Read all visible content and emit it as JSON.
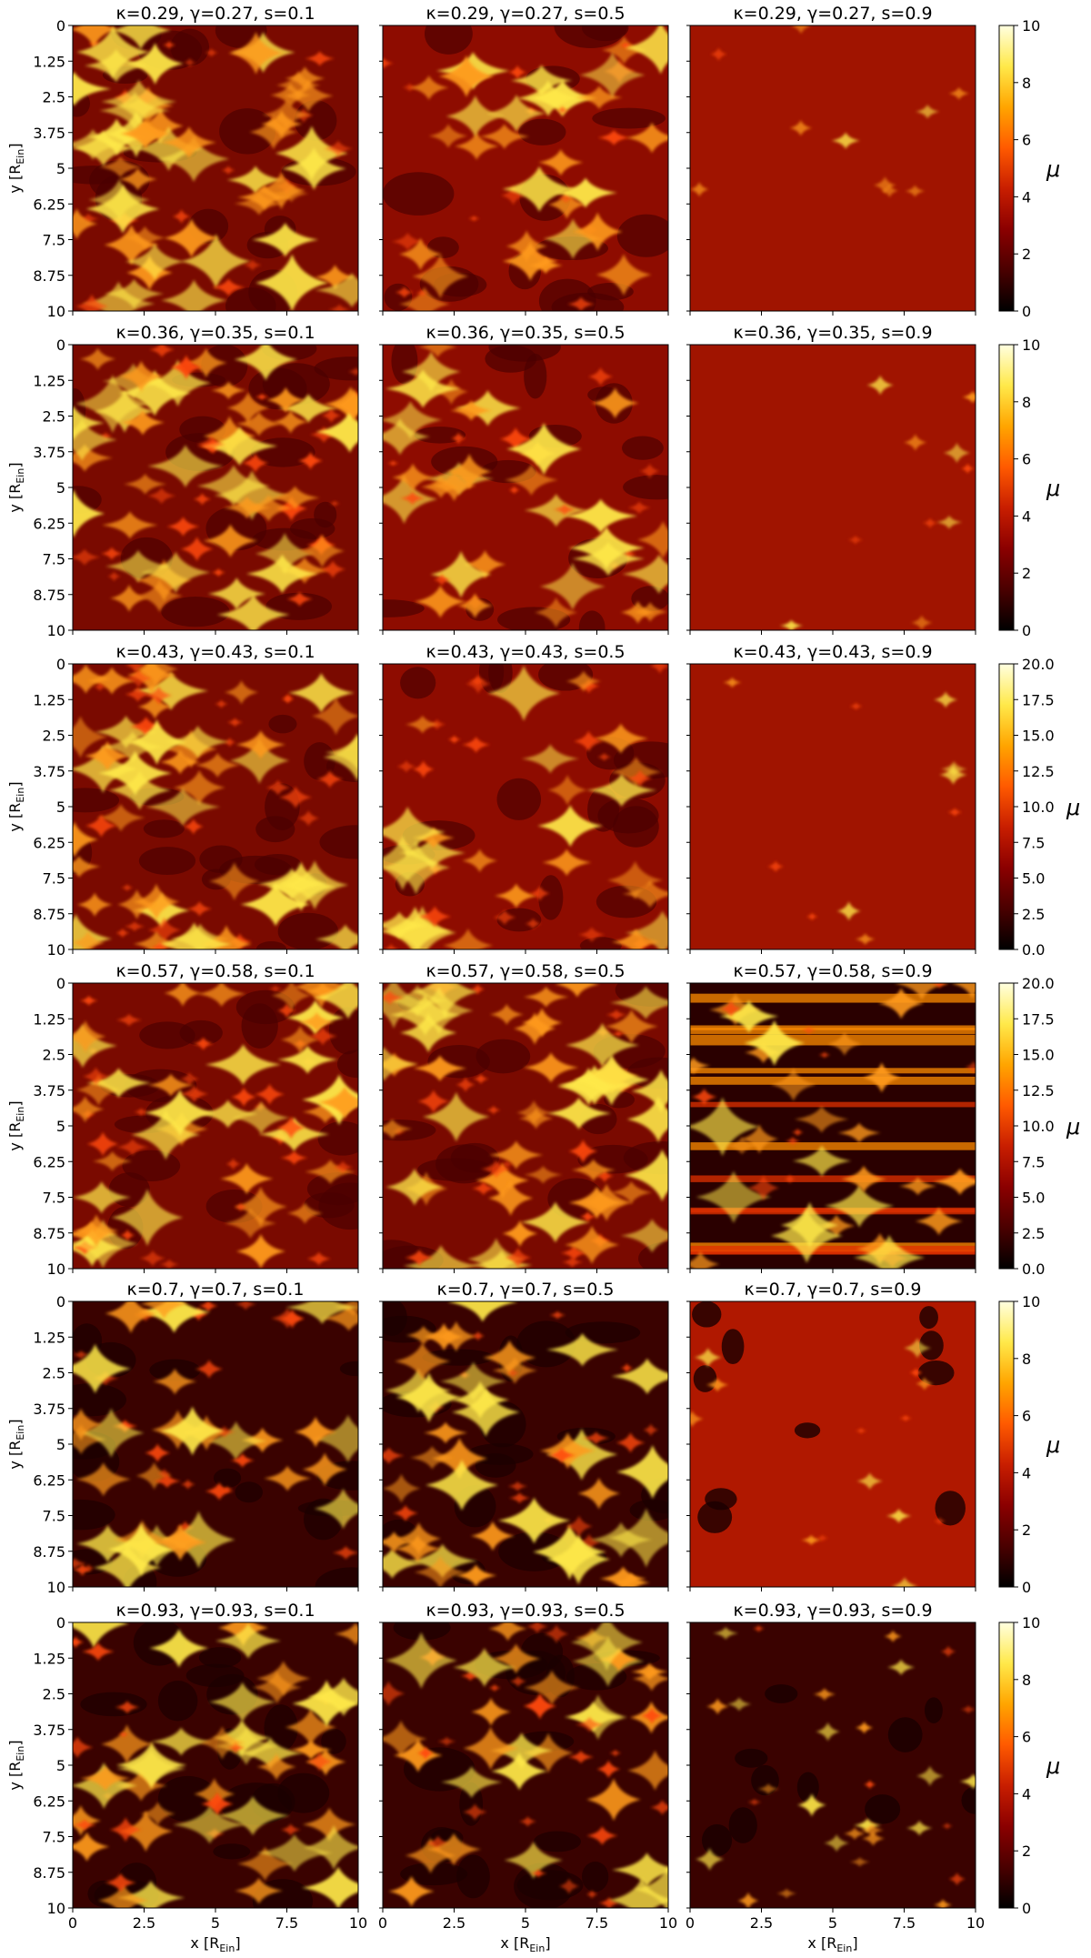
{
  "figure": {
    "colormap": [
      "#000000",
      "#4a0000",
      "#8b0000",
      "#c81e00",
      "#ff5a00",
      "#ffa500",
      "#ffe94a",
      "#ffffe0"
    ],
    "x_axis_label": "x [R",
    "y_axis_label": "y [R",
    "axis_label_subscript": "Ein",
    "colorbar_label": "μ"
  },
  "chart_data": [
    {
      "type": "heatmap",
      "title": "κ=0.29, γ=0.27, s=0.1",
      "kappa": 0.29,
      "gamma": 0.27,
      "s": 0.1,
      "xlim": [
        0,
        10
      ],
      "ylim": [
        0,
        10
      ],
      "clim": [
        0,
        10
      ],
      "texture": "dense-caustics"
    },
    {
      "type": "heatmap",
      "title": "κ=0.29, γ=0.27, s=0.5",
      "kappa": 0.29,
      "gamma": 0.27,
      "s": 0.5,
      "xlim": [
        0,
        10
      ],
      "ylim": [
        0,
        10
      ],
      "clim": [
        0,
        10
      ],
      "texture": "medium-caustics"
    },
    {
      "type": "heatmap",
      "title": "κ=0.29, γ=0.27, s=0.9",
      "kappa": 0.29,
      "gamma": 0.27,
      "s": 0.9,
      "xlim": [
        0,
        10
      ],
      "ylim": [
        0,
        10
      ],
      "clim": [
        0,
        10
      ],
      "texture": "sparse-stars"
    },
    {
      "type": "heatmap",
      "title": "κ=0.36, γ=0.35, s=0.1",
      "kappa": 0.36,
      "gamma": 0.35,
      "s": 0.1,
      "xlim": [
        0,
        10
      ],
      "ylim": [
        0,
        10
      ],
      "clim": [
        0,
        10
      ],
      "texture": "dense-caustics"
    },
    {
      "type": "heatmap",
      "title": "κ=0.36, γ=0.35, s=0.5",
      "kappa": 0.36,
      "gamma": 0.35,
      "s": 0.5,
      "xlim": [
        0,
        10
      ],
      "ylim": [
        0,
        10
      ],
      "clim": [
        0,
        10
      ],
      "texture": "medium-caustics"
    },
    {
      "type": "heatmap",
      "title": "κ=0.36, γ=0.35, s=0.9",
      "kappa": 0.36,
      "gamma": 0.35,
      "s": 0.9,
      "xlim": [
        0,
        10
      ],
      "ylim": [
        0,
        10
      ],
      "clim": [
        0,
        10
      ],
      "texture": "sparse-stars"
    },
    {
      "type": "heatmap",
      "title": "κ=0.43, γ=0.43, s=0.1",
      "kappa": 0.43,
      "gamma": 0.43,
      "s": 0.1,
      "xlim": [
        0,
        10
      ],
      "ylim": [
        0,
        10
      ],
      "clim": [
        0,
        20
      ],
      "texture": "dense-caustics"
    },
    {
      "type": "heatmap",
      "title": "κ=0.43, γ=0.43, s=0.5",
      "kappa": 0.43,
      "gamma": 0.43,
      "s": 0.5,
      "xlim": [
        0,
        10
      ],
      "ylim": [
        0,
        10
      ],
      "clim": [
        0,
        20
      ],
      "texture": "medium-caustics"
    },
    {
      "type": "heatmap",
      "title": "κ=0.43, γ=0.43, s=0.9",
      "kappa": 0.43,
      "gamma": 0.43,
      "s": 0.9,
      "xlim": [
        0,
        10
      ],
      "ylim": [
        0,
        10
      ],
      "clim": [
        0,
        20
      ],
      "texture": "sparse-stars"
    },
    {
      "type": "heatmap",
      "title": "κ=0.57, γ=0.58, s=0.1",
      "kappa": 0.57,
      "gamma": 0.58,
      "s": 0.1,
      "xlim": [
        0,
        10
      ],
      "ylim": [
        0,
        10
      ],
      "clim": [
        0,
        20
      ],
      "texture": "dense-caustics"
    },
    {
      "type": "heatmap",
      "title": "κ=0.57, γ=0.58, s=0.5",
      "kappa": 0.57,
      "gamma": 0.58,
      "s": 0.5,
      "xlim": [
        0,
        10
      ],
      "ylim": [
        0,
        10
      ],
      "clim": [
        0,
        20
      ],
      "texture": "dense-caustics"
    },
    {
      "type": "heatmap",
      "title": "κ=0.57, γ=0.58, s=0.9",
      "kappa": 0.57,
      "gamma": 0.58,
      "s": 0.9,
      "xlim": [
        0,
        10
      ],
      "ylim": [
        0,
        10
      ],
      "clim": [
        0,
        20
      ],
      "texture": "streaks"
    },
    {
      "type": "heatmap",
      "title": "κ=0.7, γ=0.7, s=0.1",
      "kappa": 0.7,
      "gamma": 0.7,
      "s": 0.1,
      "xlim": [
        0,
        10
      ],
      "ylim": [
        0,
        10
      ],
      "clim": [
        0,
        10
      ],
      "texture": "dark-caustics"
    },
    {
      "type": "heatmap",
      "title": "κ=0.7, γ=0.7, s=0.5",
      "kappa": 0.7,
      "gamma": 0.7,
      "s": 0.5,
      "xlim": [
        0,
        10
      ],
      "ylim": [
        0,
        10
      ],
      "clim": [
        0,
        10
      ],
      "texture": "dark-caustics"
    },
    {
      "type": "heatmap",
      "title": "κ=0.7, γ=0.7, s=0.9",
      "kappa": 0.7,
      "gamma": 0.7,
      "s": 0.9,
      "xlim": [
        0,
        10
      ],
      "ylim": [
        0,
        10
      ],
      "clim": [
        0,
        10
      ],
      "texture": "holes"
    },
    {
      "type": "heatmap",
      "title": "κ=0.93, γ=0.93, s=0.1",
      "kappa": 0.93,
      "gamma": 0.93,
      "s": 0.1,
      "xlim": [
        0,
        10
      ],
      "ylim": [
        0,
        10
      ],
      "clim": [
        0,
        10
      ],
      "texture": "dark-caustics"
    },
    {
      "type": "heatmap",
      "title": "κ=0.93, γ=0.93, s=0.5",
      "kappa": 0.93,
      "gamma": 0.93,
      "s": 0.5,
      "xlim": [
        0,
        10
      ],
      "ylim": [
        0,
        10
      ],
      "clim": [
        0,
        10
      ],
      "texture": "dark-caustics"
    },
    {
      "type": "heatmap",
      "title": "κ=0.93, γ=0.93, s=0.9",
      "kappa": 0.93,
      "gamma": 0.93,
      "s": 0.9,
      "xlim": [
        0,
        10
      ],
      "ylim": [
        0,
        10
      ],
      "clim": [
        0,
        10
      ],
      "texture": "dark-spots"
    }
  ],
  "y_ticks": [
    "0",
    "1.25",
    "2.5",
    "3.75",
    "5",
    "6.25",
    "7.5",
    "8.75",
    "10"
  ],
  "x_ticks": [
    "0",
    "2.5",
    "5",
    "7.5",
    "10"
  ],
  "colorbars": [
    {
      "ticks": [
        "0",
        "2",
        "4",
        "6",
        "8",
        "10"
      ]
    },
    {
      "ticks": [
        "0",
        "2",
        "4",
        "6",
        "8",
        "10"
      ]
    },
    {
      "ticks": [
        "0.0",
        "2.5",
        "5.0",
        "7.5",
        "10.0",
        "12.5",
        "15.0",
        "17.5",
        "20.0"
      ]
    },
    {
      "ticks": [
        "0.0",
        "2.5",
        "5.0",
        "7.5",
        "10.0",
        "12.5",
        "15.0",
        "17.5",
        "20.0"
      ]
    },
    {
      "ticks": [
        "0",
        "2",
        "4",
        "6",
        "8",
        "10"
      ]
    },
    {
      "ticks": [
        "0",
        "2",
        "4",
        "6",
        "8",
        "10"
      ]
    }
  ]
}
